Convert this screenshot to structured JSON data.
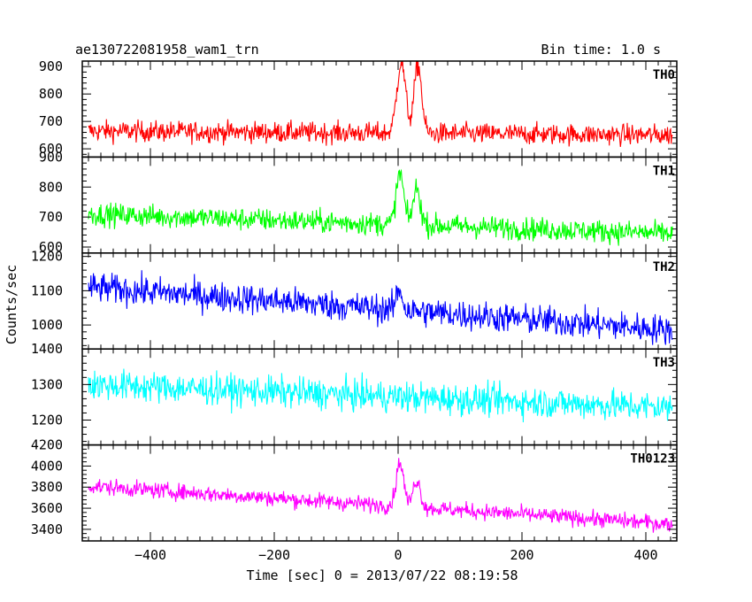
{
  "chart_data": {
    "type": "line",
    "title": "ae130722081958_wam1_trn",
    "bin_label": "Bin time: 1.0 s",
    "xlabel": "Time [sec] 0 = 2013/07/22 08:19:58",
    "ylabel": "Counts/sec",
    "xlim": [
      -510,
      450
    ],
    "xticks": [
      -400,
      -200,
      0,
      200,
      400
    ],
    "xtick_labels": [
      "−400",
      "−200",
      "0",
      "200",
      "400"
    ],
    "panels": [
      {
        "name": "TH0",
        "color": "#ff0000",
        "ylim": [
          570,
          920
        ],
        "yticks": [
          600,
          700,
          800,
          900
        ],
        "ytick_labels": [
          "600",
          "700",
          "800",
          "900"
        ],
        "base_start": 665,
        "base_end": 650,
        "noise": 35,
        "peaks": [
          [
            5,
            260,
            7
          ],
          [
            32,
            250,
            6
          ]
        ]
      },
      {
        "name": "TH1",
        "color": "#00ff00",
        "ylim": [
          580,
          900
        ],
        "yticks": [
          600,
          700,
          800,
          900
        ],
        "ytick_labels": [
          "600",
          "700",
          "800",
          "900"
        ],
        "base_start": 710,
        "base_end": 645,
        "noise": 35,
        "peaks": [
          [
            3,
            170,
            6
          ],
          [
            30,
            120,
            6
          ]
        ]
      },
      {
        "name": "TH2",
        "color": "#0000ff",
        "ylim": [
          930,
          1210
        ],
        "yticks": [
          1000,
          1100,
          1200
        ],
        "ytick_labels": [
          "1000",
          "1100",
          "1200"
        ],
        "base_start": 1110,
        "base_end": 985,
        "noise": 40,
        "peaks": [
          [
            2,
            60,
            5
          ]
        ]
      },
      {
        "name": "TH3",
        "color": "#00ffff",
        "ylim": [
          1130,
          1400
        ],
        "yticks": [
          1200,
          1300,
          1400
        ],
        "ytick_labels": [
          "1200",
          "1300",
          "1400"
        ],
        "base_start": 1300,
        "base_end": 1235,
        "noise": 40,
        "peaks": []
      },
      {
        "name": "TH0123",
        "color": "#ff00ff",
        "ylim": [
          3290,
          4200
        ],
        "yticks": [
          3400,
          3600,
          3800,
          4000,
          4200
        ],
        "ytick_labels": [
          "3400",
          "3600",
          "3800",
          "4000",
          "4200"
        ],
        "base_start": 3810,
        "base_end": 3450,
        "noise": 70,
        "peaks": [
          [
            3,
            420,
            6
          ],
          [
            30,
            260,
            6
          ]
        ]
      }
    ]
  }
}
